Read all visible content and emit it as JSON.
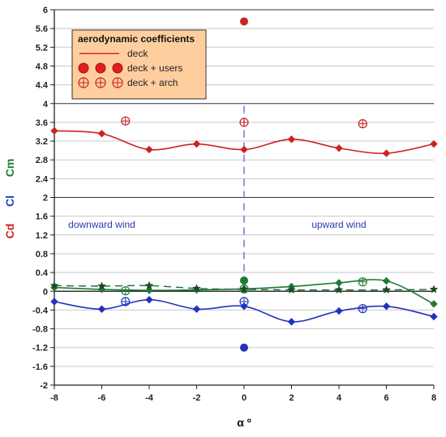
{
  "chart_data": {
    "type": "line",
    "xlabel": "α º",
    "ylabels": [
      {
        "text": "Cd",
        "color": "#d42020"
      },
      {
        "text": "Cl",
        "color": "#1f3fbf"
      },
      {
        "text": "Cm",
        "color": "#1f7a3a"
      }
    ],
    "xlim": [
      -8,
      8
    ],
    "ylim": [
      -2,
      6
    ],
    "x_ticks": [
      -8,
      -6,
      -4,
      -2,
      0,
      2,
      4,
      6,
      8
    ],
    "x_tick_labels": [
      "-8",
      "-6",
      "-4",
      "-2",
      "0",
      "2",
      "4",
      "6",
      "8"
    ],
    "y_ticks": [
      -2,
      -1.6,
      -1.2,
      -0.8,
      -0.4,
      0,
      0.4,
      0.8,
      1.2,
      1.6,
      2,
      2.4,
      2.8,
      3.2,
      3.6,
      4,
      4.4,
      4.8,
      5.2,
      5.6,
      6
    ],
    "y_tick_labels": [
      "-2",
      "-1.6",
      "-1.2",
      "-0.8",
      "-0.4",
      "0",
      "0.4",
      "0.8",
      "1.2",
      "1.6",
      "2",
      "2.4",
      "2.8",
      "3.2",
      "3.6",
      "4",
      "4.4",
      "4.8",
      "5.2",
      "5.6",
      "6"
    ],
    "y_major_ticks": [
      -2,
      0,
      2,
      4,
      6
    ],
    "grid": true,
    "legend": {
      "placement": "top-left",
      "title": "aerodynamic coefficients",
      "entries": [
        {
          "label": "deck",
          "marker": "line"
        },
        {
          "label": "deck + users",
          "marker": "filled-circle"
        },
        {
          "label": "deck + arch",
          "marker": "crossed-circle"
        }
      ]
    },
    "annotations": [
      "downward wind",
      "upward wind"
    ],
    "series": [
      {
        "coefficient": "Cd",
        "type": "deck",
        "color": "#cc2222",
        "x": [
          -8,
          -6,
          -4,
          -2,
          0,
          2,
          4,
          6,
          8
        ],
        "y": [
          3.42,
          3.36,
          3.02,
          3.14,
          3.02,
          3.24,
          3.05,
          2.94,
          3.14
        ]
      },
      {
        "coefficient": "Cd",
        "type": "deck + users",
        "color": "#cc2222",
        "x": [
          0
        ],
        "y": [
          5.75
        ]
      },
      {
        "coefficient": "Cd",
        "type": "deck + arch",
        "color": "#cc2222",
        "x": [
          -5,
          0,
          5
        ],
        "y": [
          3.63,
          3.6,
          3.57
        ]
      },
      {
        "coefficient": "Cl",
        "type": "deck",
        "color": "#2233bb",
        "x": [
          -8,
          -6,
          -4,
          -2,
          0,
          2,
          4,
          6,
          8
        ],
        "y": [
          -0.22,
          -0.38,
          -0.18,
          -0.38,
          -0.32,
          -0.65,
          -0.42,
          -0.32,
          -0.54
        ]
      },
      {
        "coefficient": "Cl",
        "type": "deck + users",
        "color": "#2233bb",
        "x": [
          0
        ],
        "y": [
          -1.2
        ]
      },
      {
        "coefficient": "Cl",
        "type": "deck + arch",
        "color": "#2233bb",
        "x": [
          -5,
          0,
          5
        ],
        "y": [
          -0.22,
          -0.22,
          -0.37
        ]
      },
      {
        "coefficient": "Cm",
        "type": "deck",
        "color": "#1f7a3a",
        "x": [
          -8,
          -6,
          -4,
          -2,
          0,
          2,
          4,
          6,
          8
        ],
        "y": [
          0.08,
          0.04,
          0.02,
          0.03,
          0.05,
          0.1,
          0.18,
          0.22,
          -0.27
        ]
      },
      {
        "coefficient": "Cm",
        "type": "deck + users",
        "color": "#1f7a3a",
        "x": [
          0
        ],
        "y": [
          0.23
        ]
      },
      {
        "coefficient": "Cm",
        "type": "deck + arch",
        "color": "#1f7a3a",
        "x": [
          -5,
          0,
          5
        ],
        "y": [
          0.01,
          0.05,
          0.2
        ]
      },
      {
        "coefficient": "Cm",
        "type": "dashed",
        "color": "#1f6a32",
        "x": [
          -8,
          -6,
          -4,
          -2,
          0,
          2,
          4,
          6,
          8
        ],
        "y": [
          0.12,
          0.11,
          0.12,
          0.06,
          0.04,
          0.03,
          0.03,
          0.03,
          0.04
        ]
      }
    ]
  }
}
